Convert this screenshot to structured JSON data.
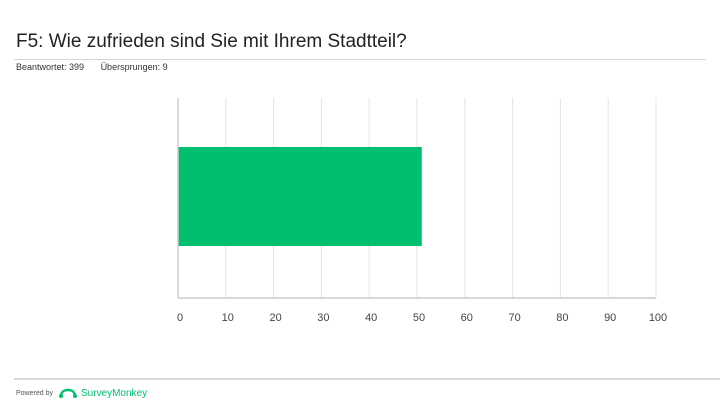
{
  "title": "F5: Wie zufrieden sind Sie mit Ihrem Stadtteil?",
  "stats": {
    "answered": "Beantwortet: 399",
    "skipped": "Übersprungen: 9"
  },
  "footer": {
    "powered_by": "Powered by",
    "brand": "SurveyMonkey"
  },
  "colors": {
    "bar": "#00bf6f",
    "grid": "#e3e3e3",
    "axis": "#cccccc"
  },
  "chart_data": {
    "type": "bar",
    "orientation": "horizontal",
    "categories": [
      ""
    ],
    "values": [
      51
    ],
    "xlim": [
      0,
      100
    ],
    "xticks": [
      "0",
      "10",
      "20",
      "30",
      "40",
      "50",
      "60",
      "70",
      "80",
      "90",
      "100"
    ],
    "grid": true,
    "legend": "none"
  }
}
